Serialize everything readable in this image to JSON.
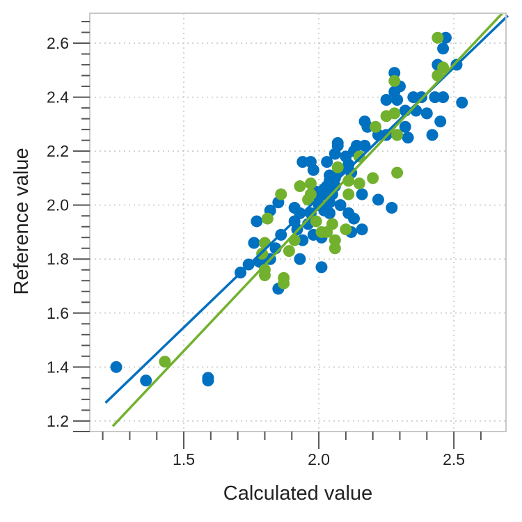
{
  "chart_data": {
    "type": "scatter",
    "title": "",
    "xlabel": "Calculated value",
    "ylabel": "Reference value",
    "xlim": [
      1.152,
      2.693
    ],
    "ylim": [
      1.161,
      2.711
    ],
    "x_ticks": [
      "1.5",
      "2.0",
      "2.5"
    ],
    "y_ticks": [
      "1.2",
      "1.4",
      "1.6",
      "1.8",
      "2.0",
      "2.2",
      "2.4",
      "2.6"
    ],
    "x_minor_step": 0.1,
    "y_minor_step": 0.04,
    "grid": true,
    "series": [
      {
        "color": "#0070c0",
        "points": [
          [
            1.25,
            1.4
          ],
          [
            1.36,
            1.35
          ],
          [
            1.59,
            1.36
          ],
          [
            1.59,
            1.35
          ],
          [
            2.47,
            2.62
          ],
          [
            2.46,
            2.58
          ],
          [
            2.51,
            2.52
          ],
          [
            2.44,
            2.52
          ],
          [
            2.28,
            2.49
          ],
          [
            2.3,
            2.44
          ],
          [
            2.28,
            2.42
          ],
          [
            2.25,
            2.39
          ],
          [
            2.29,
            2.39
          ],
          [
            2.35,
            2.4
          ],
          [
            2.38,
            2.4
          ],
          [
            2.43,
            2.4
          ],
          [
            2.46,
            2.4
          ],
          [
            2.53,
            2.38
          ],
          [
            2.32,
            2.35
          ],
          [
            2.36,
            2.35
          ],
          [
            2.4,
            2.34
          ],
          [
            2.17,
            2.31
          ],
          [
            2.18,
            2.29
          ],
          [
            2.45,
            2.31
          ],
          [
            2.32,
            2.29
          ],
          [
            2.33,
            2.25
          ],
          [
            2.42,
            2.26
          ],
          [
            2.22,
            2.26
          ],
          [
            2.25,
            2.26
          ],
          [
            2.29,
            2.26
          ],
          [
            2.07,
            2.23
          ],
          [
            2.14,
            2.22
          ],
          [
            2.17,
            2.22
          ],
          [
            2.07,
            2.22
          ],
          [
            1.94,
            2.16
          ],
          [
            1.97,
            2.16
          ],
          [
            1.98,
            2.13
          ],
          [
            2.03,
            2.16
          ],
          [
            2.11,
            2.15
          ],
          [
            2.12,
            2.12
          ],
          [
            2.04,
            2.11
          ],
          [
            2.03,
            2.07
          ],
          [
            2.06,
            2.07
          ],
          [
            2.02,
            2.04
          ],
          [
            2.05,
            2.04
          ],
          [
            2.0,
            2.03
          ],
          [
            2.04,
            2.01
          ],
          [
            2.16,
            2.04
          ],
          [
            2.22,
            2.02
          ],
          [
            2.27,
            1.99
          ],
          [
            1.85,
            2.01
          ],
          [
            1.82,
            1.98
          ],
          [
            1.91,
            1.99
          ],
          [
            1.93,
            1.97
          ],
          [
            1.97,
            1.97
          ],
          [
            2.02,
            1.98
          ],
          [
            2.04,
            1.97
          ],
          [
            1.77,
            1.94
          ],
          [
            1.91,
            1.94
          ],
          [
            2.11,
            1.97
          ],
          [
            2.13,
            1.95
          ],
          [
            1.92,
            1.91
          ],
          [
            1.86,
            1.89
          ],
          [
            1.98,
            1.89
          ],
          [
            2.01,
            1.88
          ],
          [
            2.12,
            1.9
          ],
          [
            2.16,
            1.91
          ],
          [
            1.76,
            1.86
          ],
          [
            1.84,
            1.84
          ],
          [
            1.94,
            1.87
          ],
          [
            1.82,
            1.8
          ],
          [
            1.93,
            1.8
          ],
          [
            1.74,
            1.78
          ],
          [
            1.78,
            1.79
          ],
          [
            1.71,
            1.75
          ],
          [
            2.01,
            1.77
          ],
          [
            1.85,
            1.69
          ],
          [
            2.0,
            2.0
          ],
          [
            2.02,
            2.06
          ],
          [
            2.06,
            2.1
          ],
          [
            2.08,
            2.13
          ],
          [
            1.99,
            2.05
          ],
          [
            2.04,
            2.09
          ],
          [
            2.08,
            2.0
          ],
          [
            2.1,
            2.18
          ],
          [
            2.13,
            2.2
          ],
          [
            1.96,
            1.93
          ],
          [
            2.06,
            2.19
          ]
        ],
        "fit_line": {
          "slope": 0.963,
          "intercept": 0.102,
          "x_range": [
            1.21,
            2.7
          ]
        }
      },
      {
        "color": "#72b12e",
        "points": [
          [
            2.44,
            2.62
          ],
          [
            2.46,
            2.51
          ],
          [
            2.44,
            2.48
          ],
          [
            2.28,
            2.46
          ],
          [
            2.25,
            2.33
          ],
          [
            2.28,
            2.34
          ],
          [
            2.21,
            2.29
          ],
          [
            2.29,
            2.26
          ],
          [
            2.15,
            2.18
          ],
          [
            2.07,
            2.14
          ],
          [
            2.11,
            2.09
          ],
          [
            2.15,
            2.08
          ],
          [
            2.2,
            2.1
          ],
          [
            2.29,
            2.12
          ],
          [
            2.11,
            2.04
          ],
          [
            1.86,
            2.04
          ],
          [
            1.93,
            2.07
          ],
          [
            1.97,
            2.08
          ],
          [
            1.97,
            2.04
          ],
          [
            1.96,
            2.02
          ],
          [
            1.81,
            1.95
          ],
          [
            1.99,
            1.94
          ],
          [
            2.05,
            1.93
          ],
          [
            2.1,
            1.91
          ],
          [
            2.01,
            1.9
          ],
          [
            2.03,
            1.9
          ],
          [
            2.06,
            1.87
          ],
          [
            2.06,
            1.84
          ],
          [
            1.8,
            1.86
          ],
          [
            1.91,
            1.87
          ],
          [
            1.79,
            1.82
          ],
          [
            1.89,
            1.83
          ],
          [
            1.8,
            1.76
          ],
          [
            1.8,
            1.74
          ],
          [
            1.87,
            1.73
          ],
          [
            1.87,
            1.71
          ],
          [
            1.43,
            1.42
          ]
        ],
        "fit_line": {
          "slope": 1.061,
          "intercept": -0.132,
          "x_range": [
            1.237,
            2.69
          ]
        }
      }
    ]
  }
}
